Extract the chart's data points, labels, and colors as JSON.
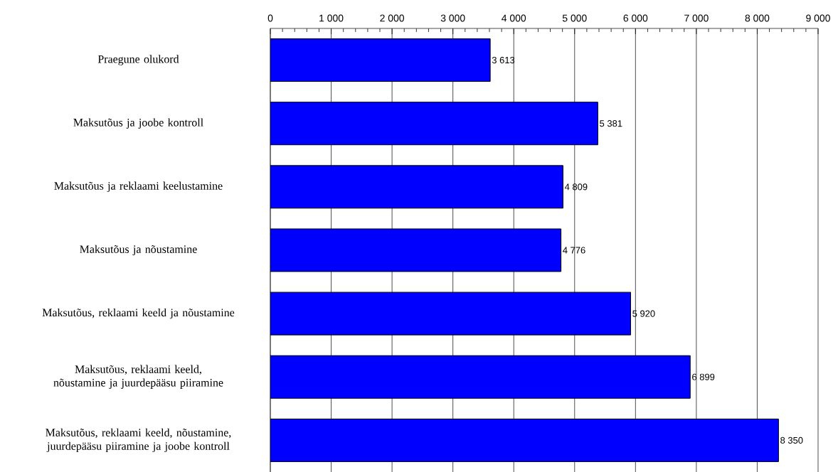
{
  "chart_data": {
    "type": "bar",
    "orientation": "horizontal",
    "categories": [
      "Praegune olukord",
      "Maksutõus ja joobe kontroll",
      "Maksutõus ja reklaami keelustamine",
      "Maksutõus ja nõustamine",
      "Maksutõus, reklaami keeld ja nõustamine",
      "Maksutõus, reklaami keeld, nõustamine ja juurdepääsu piiramine",
      "Maksutõus, reklaami keeld, nõustamine, juurdepääsu piiramine ja joobe kontroll"
    ],
    "values": [
      3613,
      5381,
      4809,
      4776,
      5920,
      6899,
      8350
    ],
    "value_labels": [
      "3 613",
      "5 381",
      "4 809",
      "4 776",
      "5 920",
      "6 899",
      "8 350"
    ],
    "color": "#0000ff",
    "xlim": [
      0,
      9000
    ],
    "xticks": [
      0,
      {
        "value": 1000,
        "label": "1 000"
      },
      {
        "value": 2000,
        "label": "2 000"
      },
      {
        "value": 3000,
        "label": "3 000"
      },
      {
        "value": 4000,
        "label": "4 000"
      },
      {
        "value": 5000,
        "label": "5 000"
      },
      {
        "value": 6000,
        "label": "6 000"
      },
      {
        "value": 7000,
        "label": "7 000"
      },
      {
        "value": 8000,
        "label": "8 000"
      },
      {
        "value": 9000,
        "label": "9 000"
      }
    ],
    "grid": "x"
  }
}
